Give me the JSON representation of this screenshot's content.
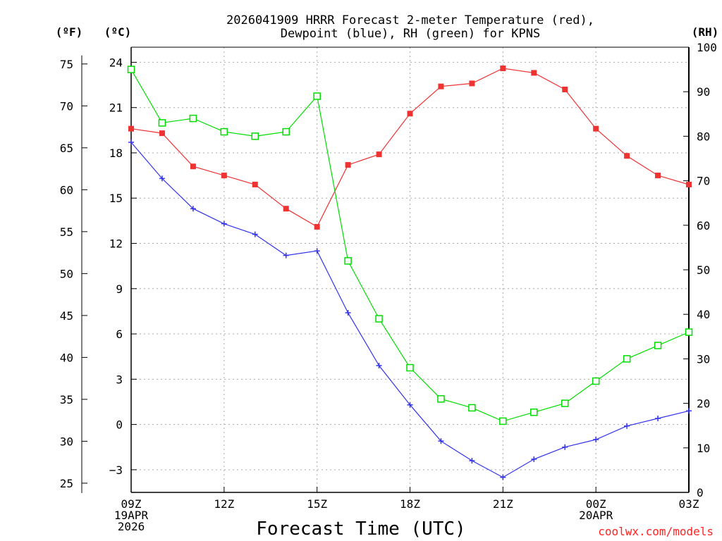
{
  "chart_data": {
    "type": "line",
    "title": [
      "2026041909 HRRR Forecast 2-meter Temperature (red),",
      "Dewpoint (blue), RH (green) for KPNS"
    ],
    "xlabel": "Forecast Time (UTC)",
    "credit": "coolwx.com/models",
    "units": {
      "fahrenheit": "(ºF)",
      "celsius": "(ºC)",
      "rh": "(RH)"
    },
    "x": [
      0,
      1,
      2,
      3,
      4,
      5,
      6,
      7,
      8,
      9,
      10,
      11,
      12,
      13,
      14,
      15,
      16,
      17,
      18
    ],
    "xlim": [
      0,
      18
    ],
    "x_ticks": [
      {
        "hour": 0,
        "lines": [
          "09Z",
          "19APR",
          "2026"
        ]
      },
      {
        "hour": 3,
        "lines": [
          "12Z"
        ]
      },
      {
        "hour": 6,
        "lines": [
          "15Z"
        ]
      },
      {
        "hour": 9,
        "lines": [
          "18Z"
        ]
      },
      {
        "hour": 12,
        "lines": [
          "21Z"
        ]
      },
      {
        "hour": 15,
        "lines": [
          "00Z",
          "20APR"
        ]
      },
      {
        "hour": 18,
        "lines": [
          "03Z"
        ]
      }
    ],
    "celsius_axis": {
      "lim": [
        -4.5,
        25.0
      ],
      "ticks": [
        "24",
        "21",
        "18",
        "15",
        "12",
        "9",
        "6",
        "3",
        "0",
        "−3"
      ],
      "tick_values": [
        24,
        21,
        18,
        15,
        12,
        9,
        6,
        3,
        0,
        -3
      ]
    },
    "fahrenheit_axis": {
      "ticks": [
        "75",
        "70",
        "65",
        "60",
        "55",
        "50",
        "45",
        "40",
        "35",
        "30",
        "25"
      ],
      "tick_values": [
        75,
        70,
        65,
        60,
        55,
        50,
        45,
        40,
        35,
        30,
        25
      ]
    },
    "rh_axis": {
      "lim": [
        0,
        100
      ],
      "ticks": [
        "100",
        "90",
        "80",
        "70",
        "60",
        "50",
        "40",
        "30",
        "20",
        "10",
        "0"
      ],
      "tick_values": [
        100,
        90,
        80,
        70,
        60,
        50,
        40,
        30,
        20,
        10,
        0
      ]
    },
    "series": [
      {
        "name": "2-meter Temperature",
        "axis": "celsius",
        "color": "#ee3333",
        "marker": "filled-square",
        "values": [
          19.6,
          19.3,
          17.1,
          16.5,
          15.9,
          14.3,
          13.1,
          17.2,
          17.9,
          20.6,
          22.4,
          22.6,
          23.6,
          23.3,
          22.2,
          19.6,
          17.8,
          16.5,
          15.9
        ]
      },
      {
        "name": "Dewpoint",
        "axis": "celsius",
        "color": "#3333ee",
        "marker": "plus",
        "values": [
          18.7,
          16.3,
          14.3,
          13.3,
          12.6,
          11.2,
          11.5,
          7.4,
          3.9,
          1.3,
          -1.1,
          -2.4,
          -3.5,
          -2.3,
          -1.5,
          -1.0,
          -0.1,
          0.4,
          0.9
        ]
      },
      {
        "name": "RH",
        "axis": "rh",
        "color": "#00dd00",
        "marker": "open-square",
        "values": [
          95,
          83,
          84,
          81,
          80,
          81,
          89,
          52,
          39,
          28,
          21,
          19,
          16,
          18,
          20,
          25,
          30,
          33,
          36
        ]
      }
    ],
    "grid": true
  }
}
